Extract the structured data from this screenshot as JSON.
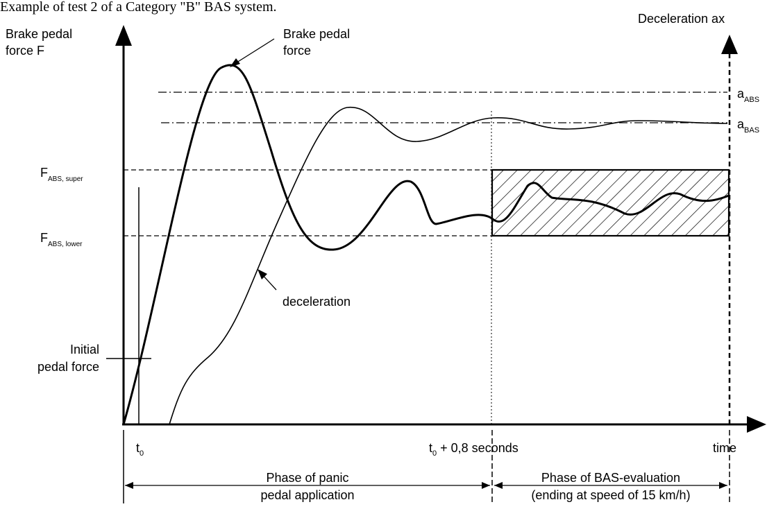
{
  "caption": "Example of test 2 of a Category \"B\" BAS system.",
  "labels": {
    "y_axis_left_line1": "Brake pedal",
    "y_axis_left_line2": "force F",
    "y_axis_right": "Deceleration ax",
    "x_axis_end": "time",
    "t0_main": "t",
    "t0_sub": "0",
    "t08_main": "t",
    "t08_sub": "0",
    "t08_rest": " + 0,8 seconds",
    "a_abs_main": "a",
    "a_abs_sub": "ABS",
    "a_bas_main": "a",
    "a_bas_sub": "BAS",
    "f_super_main": "F",
    "f_super_sub": "ABS, super",
    "f_lower_main": "F",
    "f_lower_sub": "ABS, lower",
    "initial_line1": "Initial",
    "initial_line2": "pedal force",
    "brake_force_line1": "Brake pedal",
    "brake_force_line2": "force",
    "deceleration": "deceleration",
    "phase1_line1": "Phase of panic",
    "phase1_line2": "pedal application",
    "phase2_line1": "Phase of BAS-evaluation",
    "phase2_line2": "(ending at speed of 15 km/h)"
  }
}
